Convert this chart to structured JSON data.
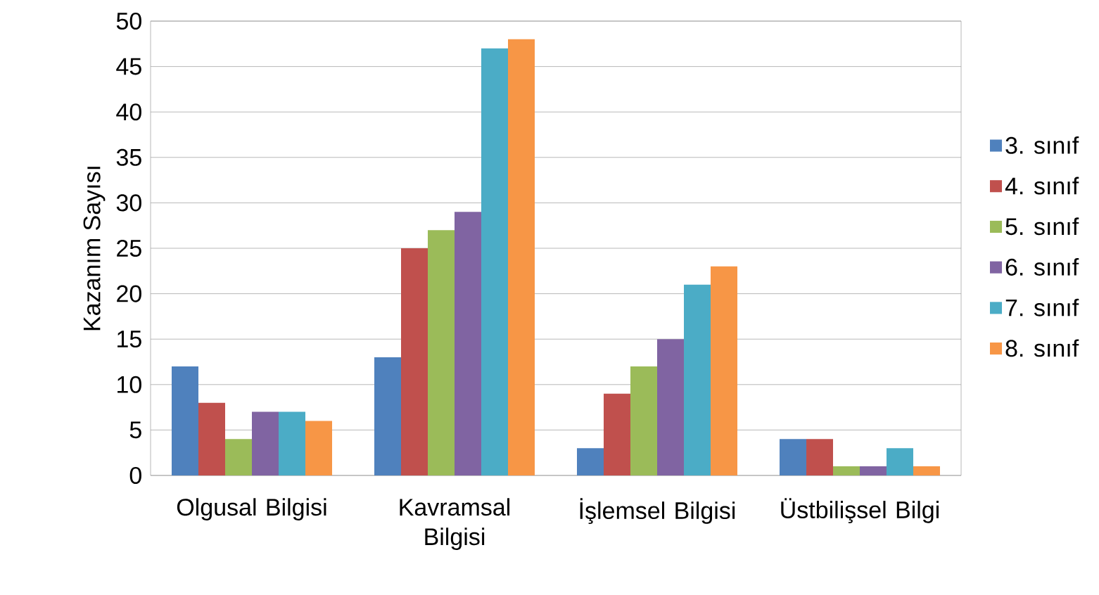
{
  "chart_data": {
    "type": "bar",
    "ylabel": "Kazanım Sayısı",
    "categories": [
      "Olgusal Bilgisi",
      "Kavramsal Bilgisi",
      "İşlemsel Bilgisi",
      "Üstbilişsel Bilgi"
    ],
    "series": [
      {
        "name": "3. sınıf",
        "color": "#4f81bd",
        "values": [
          12,
          13,
          3,
          4
        ]
      },
      {
        "name": "4. sınıf",
        "color": "#c0504d",
        "values": [
          8,
          25,
          9,
          4
        ]
      },
      {
        "name": "5. sınıf",
        "color": "#9bbb59",
        "values": [
          4,
          27,
          12,
          1
        ]
      },
      {
        "name": "6. sınıf",
        "color": "#8064a2",
        "values": [
          7,
          29,
          15,
          1
        ]
      },
      {
        "name": "7. sınıf",
        "color": "#4bacc6",
        "values": [
          7,
          47,
          21,
          3
        ]
      },
      {
        "name": "8. sınıf",
        "color": "#f79646",
        "values": [
          6,
          48,
          23,
          1
        ]
      }
    ],
    "ylim": [
      0,
      50
    ],
    "yticks": [
      0,
      5,
      10,
      15,
      20,
      25,
      30,
      35,
      40,
      45,
      50
    ],
    "grid": "y",
    "legend": "right"
  }
}
